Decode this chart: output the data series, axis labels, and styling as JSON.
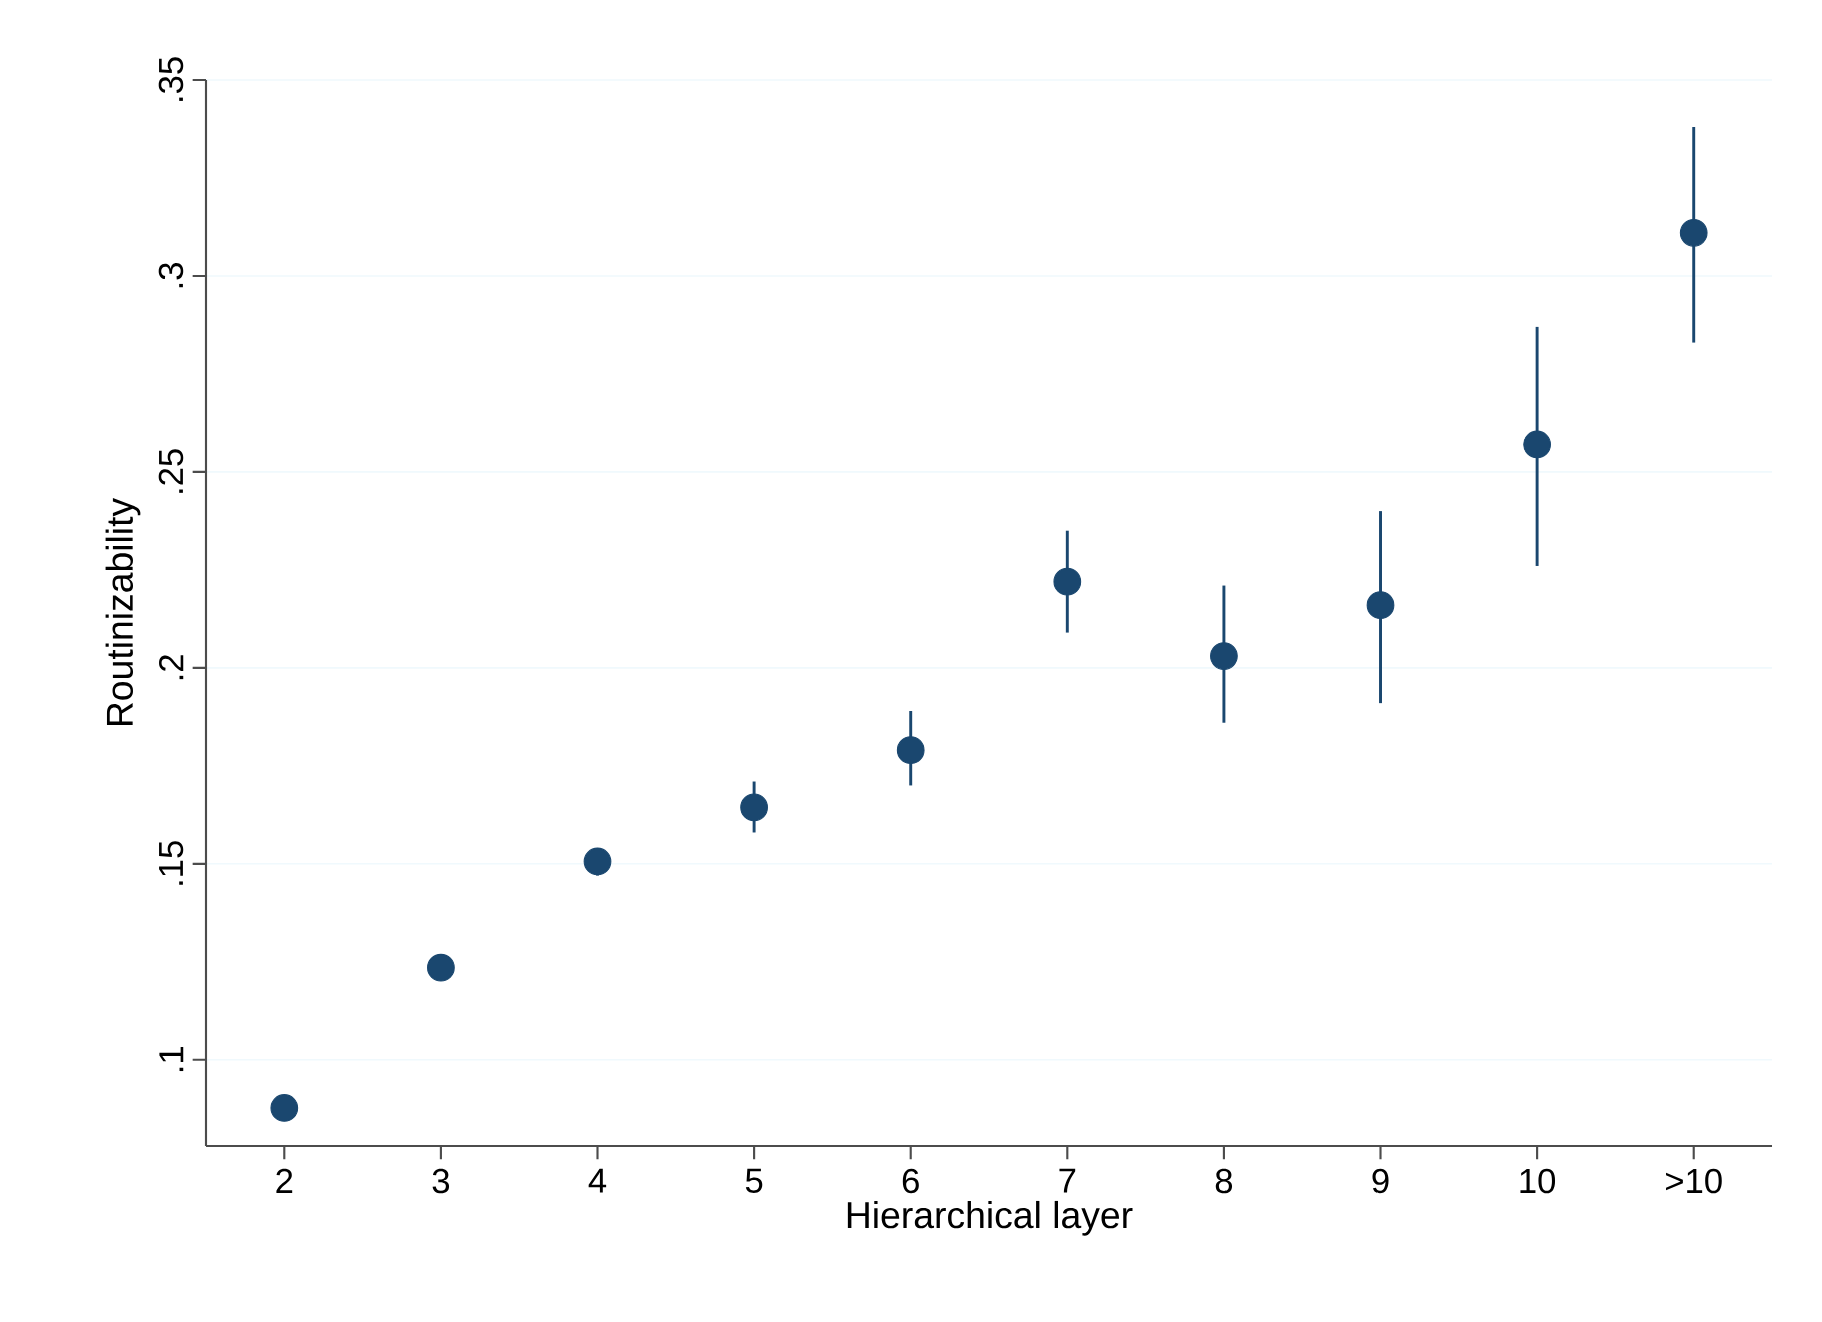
{
  "chart_data": {
    "type": "scatter",
    "xlabel": "Hierarchical layer",
    "ylabel": "Routinizability",
    "categories": [
      "2",
      "3",
      "4",
      "5",
      "6",
      "7",
      "8",
      "9",
      "10",
      ">10"
    ],
    "values": [
      0.0877,
      0.1235,
      0.1506,
      0.1644,
      0.179,
      0.222,
      0.203,
      0.216,
      0.257,
      0.311
    ],
    "errors": [
      null,
      null,
      [
        0.147,
        0.154
      ],
      [
        0.158,
        0.171
      ],
      [
        0.17,
        0.189
      ],
      [
        0.209,
        0.235
      ],
      [
        0.186,
        0.221
      ],
      [
        0.191,
        0.24
      ],
      [
        0.226,
        0.287
      ],
      [
        0.283,
        0.338
      ]
    ],
    "color": "#1a476f",
    "marker": "circle",
    "ylim": [
      0.078,
      0.35
    ],
    "yticks": [
      {
        "value": 0.1,
        "label": ".1"
      },
      {
        "value": 0.15,
        "label": ".15"
      },
      {
        "value": 0.2,
        "label": ".2"
      },
      {
        "value": 0.25,
        "label": ".25"
      },
      {
        "value": 0.3,
        "label": ".3"
      },
      {
        "value": 0.35,
        "label": ".35"
      }
    ],
    "grid": "y"
  }
}
